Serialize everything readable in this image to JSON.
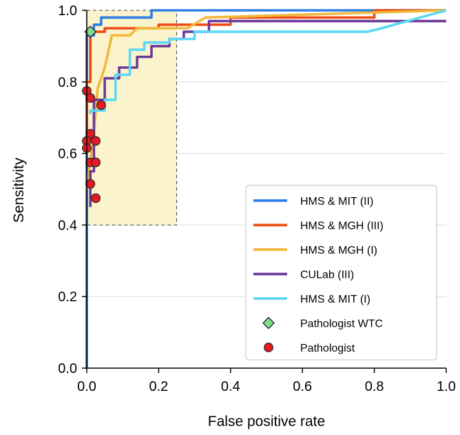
{
  "chart_data": {
    "type": "line",
    "title": "",
    "xlabel": "False positive rate",
    "ylabel": "Sensitivity",
    "xlim": [
      0,
      1
    ],
    "ylim": [
      0,
      1
    ],
    "xticks": [
      0.0,
      0.2,
      0.4,
      0.6,
      0.8,
      1.0
    ],
    "yticks": [
      0.0,
      0.2,
      0.4,
      0.6,
      0.8,
      1.0
    ],
    "xtick_labels": [
      "0.0",
      "0.2",
      "0.4",
      "0.6",
      "0.8",
      "1.0"
    ],
    "ytick_labels": [
      "0.0",
      "0.2",
      "0.4",
      "0.6",
      "0.8",
      "1.0"
    ],
    "grid": "horizontal",
    "legend_position": "bottom-right",
    "highlight_region": {
      "x": [
        0,
        0.25
      ],
      "y": [
        0.4,
        1.0
      ],
      "color": "#fbf3cc"
    },
    "series": [
      {
        "name": "HMS & MIT (II)",
        "color": "#2f7fe3",
        "points": [
          [
            0,
            0
          ],
          [
            0,
            0.73
          ],
          [
            0,
            0.93
          ],
          [
            0.02,
            0.93
          ],
          [
            0.02,
            0.96
          ],
          [
            0.04,
            0.96
          ],
          [
            0.04,
            0.98
          ],
          [
            0.18,
            0.98
          ],
          [
            0.18,
            1.0
          ],
          [
            1,
            1.0
          ]
        ]
      },
      {
        "name": "HMS & MGH (III)",
        "color": "#f04d14",
        "points": [
          [
            0,
            0.6
          ],
          [
            0,
            0.8
          ],
          [
            0.01,
            0.8
          ],
          [
            0.01,
            0.94
          ],
          [
            0.05,
            0.94
          ],
          [
            0.05,
            0.95
          ],
          [
            0.2,
            0.95
          ],
          [
            0.2,
            0.96
          ],
          [
            0.4,
            0.96
          ],
          [
            0.4,
            0.98
          ],
          [
            0.8,
            0.98
          ],
          [
            0.8,
            1.0
          ],
          [
            1,
            1.0
          ]
        ]
      },
      {
        "name": "HMS & MGH (I)",
        "color": "#f0b93a",
        "points": [
          [
            0,
            0.5
          ],
          [
            0.02,
            0.66
          ],
          [
            0.03,
            0.78
          ],
          [
            0.05,
            0.84
          ],
          [
            0.07,
            0.93
          ],
          [
            0.12,
            0.93
          ],
          [
            0.14,
            0.95
          ],
          [
            0.28,
            0.95
          ],
          [
            0.33,
            0.98
          ],
          [
            1,
            1.0
          ]
        ]
      },
      {
        "name": "CULab (III)",
        "color": "#6e3a9a",
        "points": [
          [
            0.01,
            0.45
          ],
          [
            0.01,
            0.55
          ],
          [
            0.02,
            0.55
          ],
          [
            0.02,
            0.75
          ],
          [
            0.05,
            0.75
          ],
          [
            0.05,
            0.81
          ],
          [
            0.09,
            0.81
          ],
          [
            0.09,
            0.84
          ],
          [
            0.14,
            0.84
          ],
          [
            0.14,
            0.87
          ],
          [
            0.18,
            0.87
          ],
          [
            0.18,
            0.9
          ],
          [
            0.23,
            0.9
          ],
          [
            0.23,
            0.92
          ],
          [
            0.27,
            0.92
          ],
          [
            0.27,
            0.94
          ],
          [
            0.34,
            0.94
          ],
          [
            0.34,
            0.97
          ],
          [
            1,
            0.97
          ]
        ]
      },
      {
        "name": "HMS & MIT (I)",
        "color": "#5bd8f5",
        "points": [
          [
            0.01,
            0.71
          ],
          [
            0.01,
            0.72
          ],
          [
            0.05,
            0.72
          ],
          [
            0.05,
            0.75
          ],
          [
            0.08,
            0.75
          ],
          [
            0.08,
            0.82
          ],
          [
            0.12,
            0.82
          ],
          [
            0.12,
            0.89
          ],
          [
            0.16,
            0.89
          ],
          [
            0.16,
            0.91
          ],
          [
            0.23,
            0.91
          ],
          [
            0.23,
            0.92
          ],
          [
            0.3,
            0.92
          ],
          [
            0.3,
            0.94
          ],
          [
            0.78,
            0.94
          ],
          [
            0.82,
            0.95
          ],
          [
            1,
            1.0
          ]
        ]
      }
    ],
    "markers": [
      {
        "name": "Pathologist WTC",
        "shape": "diamond",
        "color": "#7fdf8c",
        "points": [
          [
            0.01,
            0.94
          ]
        ]
      },
      {
        "name": "Pathologist",
        "shape": "circle",
        "color": "#e8191e",
        "points": [
          [
            0.0,
            0.775
          ],
          [
            0.01,
            0.755
          ],
          [
            0.04,
            0.735
          ],
          [
            0.01,
            0.655
          ],
          [
            0.0,
            0.635
          ],
          [
            0.025,
            0.635
          ],
          [
            0.0,
            0.615
          ],
          [
            0.01,
            0.575
          ],
          [
            0.025,
            0.575
          ],
          [
            0.01,
            0.515
          ],
          [
            0.025,
            0.475
          ]
        ]
      }
    ]
  }
}
